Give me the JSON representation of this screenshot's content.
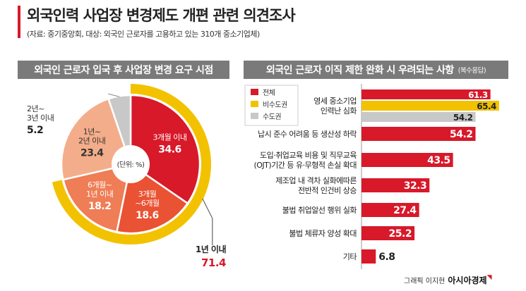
{
  "header": {
    "title": "외국인력 사업장 변경제도 개편 관련 의견조사",
    "subtitle": "(자료: 중기중앙회, 대상: 외국인 근로자를 고용하고 있는 310개 중소기업체)"
  },
  "credit": {
    "text": "그래픽 이지현",
    "brand": "아시아경제"
  },
  "colors": {
    "accent": "#d7192a",
    "yellow": "#f2c200",
    "gray": "#c8c8c8",
    "header_gray": "#7a7a7a"
  },
  "chart_data": [
    {
      "type": "pie",
      "title": "외국인 근로자 입국 후 사업장 변경 요구 시점",
      "center_label": "(단위: %)",
      "slices": [
        {
          "label_lines": [
            "3개월 이내"
          ],
          "value": 34.6,
          "color": "#d7192a"
        },
        {
          "label_lines": [
            "3개월",
            "~6개월"
          ],
          "value": 18.6,
          "color": "#e95233"
        },
        {
          "label_lines": [
            "6개월~",
            "1년 이내"
          ],
          "value": 18.2,
          "color": "#ef7d55"
        },
        {
          "label_lines": [
            "1년~",
            "2년 이내"
          ],
          "value": 23.4,
          "color": "#f4ad8a"
        },
        {
          "label_lines": [
            "2년~",
            "3년 이내"
          ],
          "value": 5.2,
          "color": "#c8c8c8"
        }
      ],
      "annotation": {
        "label": "1년 이내",
        "value": "71.4"
      }
    },
    {
      "type": "bar",
      "orientation": "horizontal",
      "title": "외국인 근로자 이직 제한 완화 시 우려되는 사항",
      "title_note": "(복수응답)",
      "legend": [
        {
          "name": "전체",
          "color": "#d7192a"
        },
        {
          "name": "비수도권",
          "color": "#f2c200"
        },
        {
          "name": "수도권",
          "color": "#c8c8c8"
        }
      ],
      "legend_position": "top-left",
      "xlim": [
        0,
        70
      ],
      "categories": [
        {
          "label_lines": [
            "영세 중소기업",
            "인력난 심화"
          ],
          "values": [
            {
              "series": "전체",
              "value": 61.3
            },
            {
              "series": "비수도권",
              "value": 65.4
            },
            {
              "series": "수도권",
              "value": 54.2
            }
          ]
        },
        {
          "label_lines": [
            "납시 준수 어려움 등 생산성 하락"
          ],
          "values": [
            {
              "series": "전체",
              "value": 54.2
            }
          ]
        },
        {
          "label_lines": [
            "도입·취업교육 비용 및 직무교육",
            "(OJT)기간 등 유·무형적 손실 확대"
          ],
          "values": [
            {
              "series": "전체",
              "value": 43.5
            }
          ]
        },
        {
          "label_lines": [
            "제조업 내 격차 실화에따른",
            "전반적 인건비 상승"
          ],
          "values": [
            {
              "series": "전체",
              "value": 32.3
            }
          ]
        },
        {
          "label_lines": [
            "불법 취업알선 행위 실화"
          ],
          "values": [
            {
              "series": "전체",
              "value": 27.4
            }
          ]
        },
        {
          "label_lines": [
            "불법 체류자 양성 확대"
          ],
          "values": [
            {
              "series": "전체",
              "value": 25.2
            }
          ]
        },
        {
          "label_lines": [
            "기타"
          ],
          "values": [
            {
              "series": "전체",
              "value": 6.8
            }
          ]
        }
      ]
    }
  ]
}
